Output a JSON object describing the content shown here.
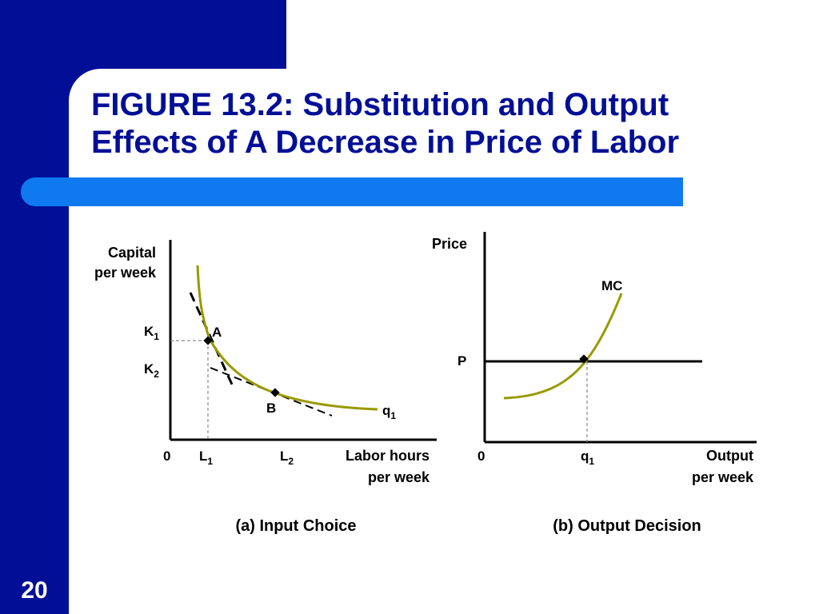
{
  "slide": {
    "title_line1": "FIGURE 13.2: Substitution and Output",
    "title_line2": "Effects of A Decrease in Price of Labor",
    "number": "20"
  },
  "panel_a": {
    "y_label_line1": "Capital",
    "y_label_line2": "per week",
    "x_label_line1": "Labor hours",
    "x_label_line2": "per week",
    "origin": "0",
    "k1": "K",
    "k1_sub": "1",
    "k2": "K",
    "k2_sub": "2",
    "l1": "L",
    "l1_sub": "1",
    "l2": "L",
    "l2_sub": "2",
    "point_a": "A",
    "point_b": "B",
    "isoquant": "q",
    "isoquant_sub": "1",
    "caption": "(a) Input Choice"
  },
  "panel_b": {
    "y_label": "Price",
    "x_label_line1": "Output",
    "x_label_line2": "per week",
    "origin": "0",
    "mc_label": "MC",
    "price_label": "P",
    "q1": "q",
    "q1_sub": "1",
    "caption": "(b) Output Decision"
  },
  "colors": {
    "slide_blue": "#000f96",
    "accent_blue": "#0f7af0",
    "curve": "#999900"
  }
}
